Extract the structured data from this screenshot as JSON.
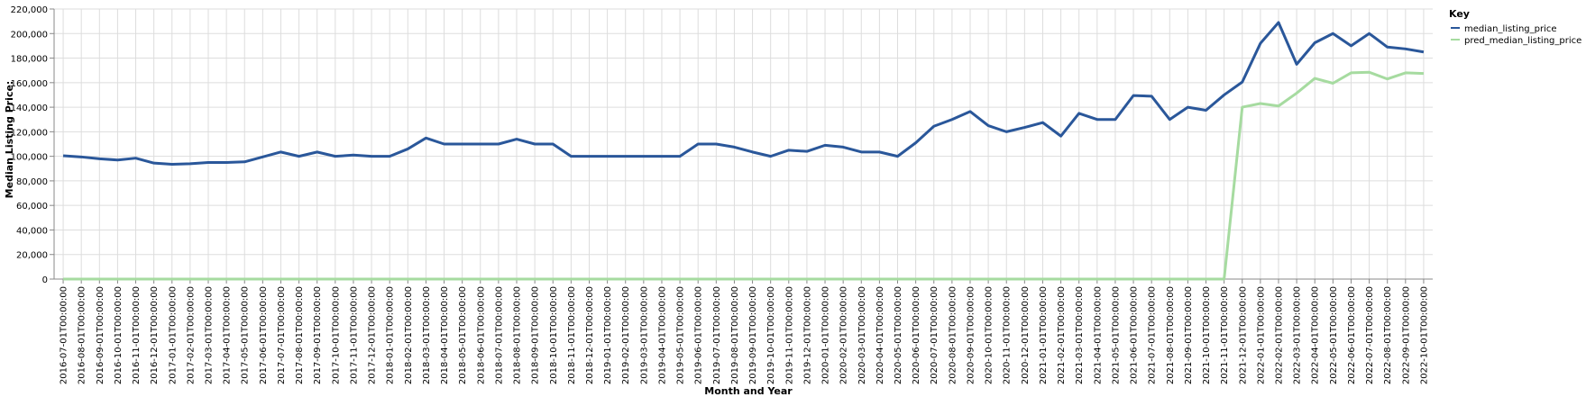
{
  "chart_data": {
    "type": "line",
    "title": "",
    "xlabel": "Month and Year",
    "ylabel": "Median Listing Price:",
    "ylim": [
      0,
      220000
    ],
    "y_ticks": [
      0,
      20000,
      40000,
      60000,
      80000,
      100000,
      120000,
      140000,
      160000,
      180000,
      200000,
      220000
    ],
    "y_tick_labels": [
      "0",
      "20,000",
      "40,000",
      "60,000",
      "80,000",
      "100,000",
      "120,000",
      "140,000",
      "160,000",
      "180,000",
      "200,000",
      "220,000"
    ],
    "grid": true,
    "legend": {
      "title": "Key",
      "placement": "top-right",
      "entries": [
        "median_listing_price",
        "pred_median_listing_price"
      ]
    },
    "categories": [
      "2016-07-01T00:00:00",
      "2016-08-01T00:00:00",
      "2016-09-01T00:00:00",
      "2016-10-01T00:00:00",
      "2016-11-01T00:00:00",
      "2016-12-01T00:00:00",
      "2017-01-01T00:00:00",
      "2017-02-01T00:00:00",
      "2017-03-01T00:00:00",
      "2017-04-01T00:00:00",
      "2017-05-01T00:00:00",
      "2017-06-01T00:00:00",
      "2017-07-01T00:00:00",
      "2017-08-01T00:00:00",
      "2017-09-01T00:00:00",
      "2017-10-01T00:00:00",
      "2017-11-01T00:00:00",
      "2017-12-01T00:00:00",
      "2018-01-01T00:00:00",
      "2018-02-01T00:00:00",
      "2018-03-01T00:00:00",
      "2018-04-01T00:00:00",
      "2018-05-01T00:00:00",
      "2018-06-01T00:00:00",
      "2018-07-01T00:00:00",
      "2018-08-01T00:00:00",
      "2018-09-01T00:00:00",
      "2018-10-01T00:00:00",
      "2018-11-01T00:00:00",
      "2018-12-01T00:00:00",
      "2019-01-01T00:00:00",
      "2019-02-01T00:00:00",
      "2019-03-01T00:00:00",
      "2019-04-01T00:00:00",
      "2019-05-01T00:00:00",
      "2019-06-01T00:00:00",
      "2019-07-01T00:00:00",
      "2019-08-01T00:00:00",
      "2019-09-01T00:00:00",
      "2019-10-01T00:00:00",
      "2019-11-01T00:00:00",
      "2019-12-01T00:00:00",
      "2020-01-01T00:00:00",
      "2020-02-01T00:00:00",
      "2020-03-01T00:00:00",
      "2020-04-01T00:00:00",
      "2020-05-01T00:00:00",
      "2020-06-01T00:00:00",
      "2020-07-01T00:00:00",
      "2020-08-01T00:00:00",
      "2020-09-01T00:00:00",
      "2020-10-01T00:00:00",
      "2020-11-01T00:00:00",
      "2020-12-01T00:00:00",
      "2021-01-01T00:00:00",
      "2021-02-01T00:00:00",
      "2021-03-01T00:00:00",
      "2021-04-01T00:00:00",
      "2021-05-01T00:00:00",
      "2021-06-01T00:00:00",
      "2021-07-01T00:00:00",
      "2021-08-01T00:00:00",
      "2021-09-01T00:00:00",
      "2021-10-01T00:00:00",
      "2021-11-01T00:00:00",
      "2021-12-01T00:00:00",
      "2022-01-01T00:00:00",
      "2022-02-01T00:00:00",
      "2022-03-01T00:00:00",
      "2022-04-01T00:00:00",
      "2022-05-01T00:00:00",
      "2022-06-01T00:00:00",
      "2022-07-01T00:00:00",
      "2022-08-01T00:00:00",
      "2022-09-01T00:00:00",
      "2022-10-01T00:00:00"
    ],
    "series": [
      {
        "name": "median_listing_price",
        "color": "#2a579a",
        "values": [
          100500,
          99500,
          98000,
          97000,
          98500,
          94500,
          93500,
          94000,
          95000,
          95000,
          95500,
          99500,
          103500,
          100000,
          103500,
          100000,
          101000,
          100000,
          100000,
          106000,
          114900,
          110000,
          110000,
          110000,
          110000,
          114000,
          110000,
          110000,
          100000,
          100000,
          100000,
          100000,
          100000,
          100000,
          100000,
          110000,
          110000,
          107500,
          103500,
          100000,
          105000,
          104000,
          109000,
          107500,
          103500,
          103500,
          100000,
          111000,
          124500,
          130000,
          136500,
          125000,
          120000,
          123500,
          127500,
          116500,
          135000,
          130000,
          130000,
          149500,
          149000,
          130000,
          140000,
          137500,
          150000,
          160500,
          192000,
          209000,
          175000,
          192500,
          200000,
          190000,
          200000,
          189000,
          187500,
          185000
        ]
      },
      {
        "name": "pred_median_listing_price",
        "color": "#a6dba0",
        "values": [
          0,
          0,
          0,
          0,
          0,
          0,
          0,
          0,
          0,
          0,
          0,
          0,
          0,
          0,
          0,
          0,
          0,
          0,
          0,
          0,
          0,
          0,
          0,
          0,
          0,
          0,
          0,
          0,
          0,
          0,
          0,
          0,
          0,
          0,
          0,
          0,
          0,
          0,
          0,
          0,
          0,
          0,
          0,
          0,
          0,
          0,
          0,
          0,
          0,
          0,
          0,
          0,
          0,
          0,
          0,
          0,
          0,
          0,
          0,
          0,
          0,
          0,
          0,
          0,
          0,
          140000,
          143000,
          141000,
          151500,
          163500,
          159500,
          168000,
          168500,
          163000,
          168000,
          167500
        ]
      }
    ]
  }
}
